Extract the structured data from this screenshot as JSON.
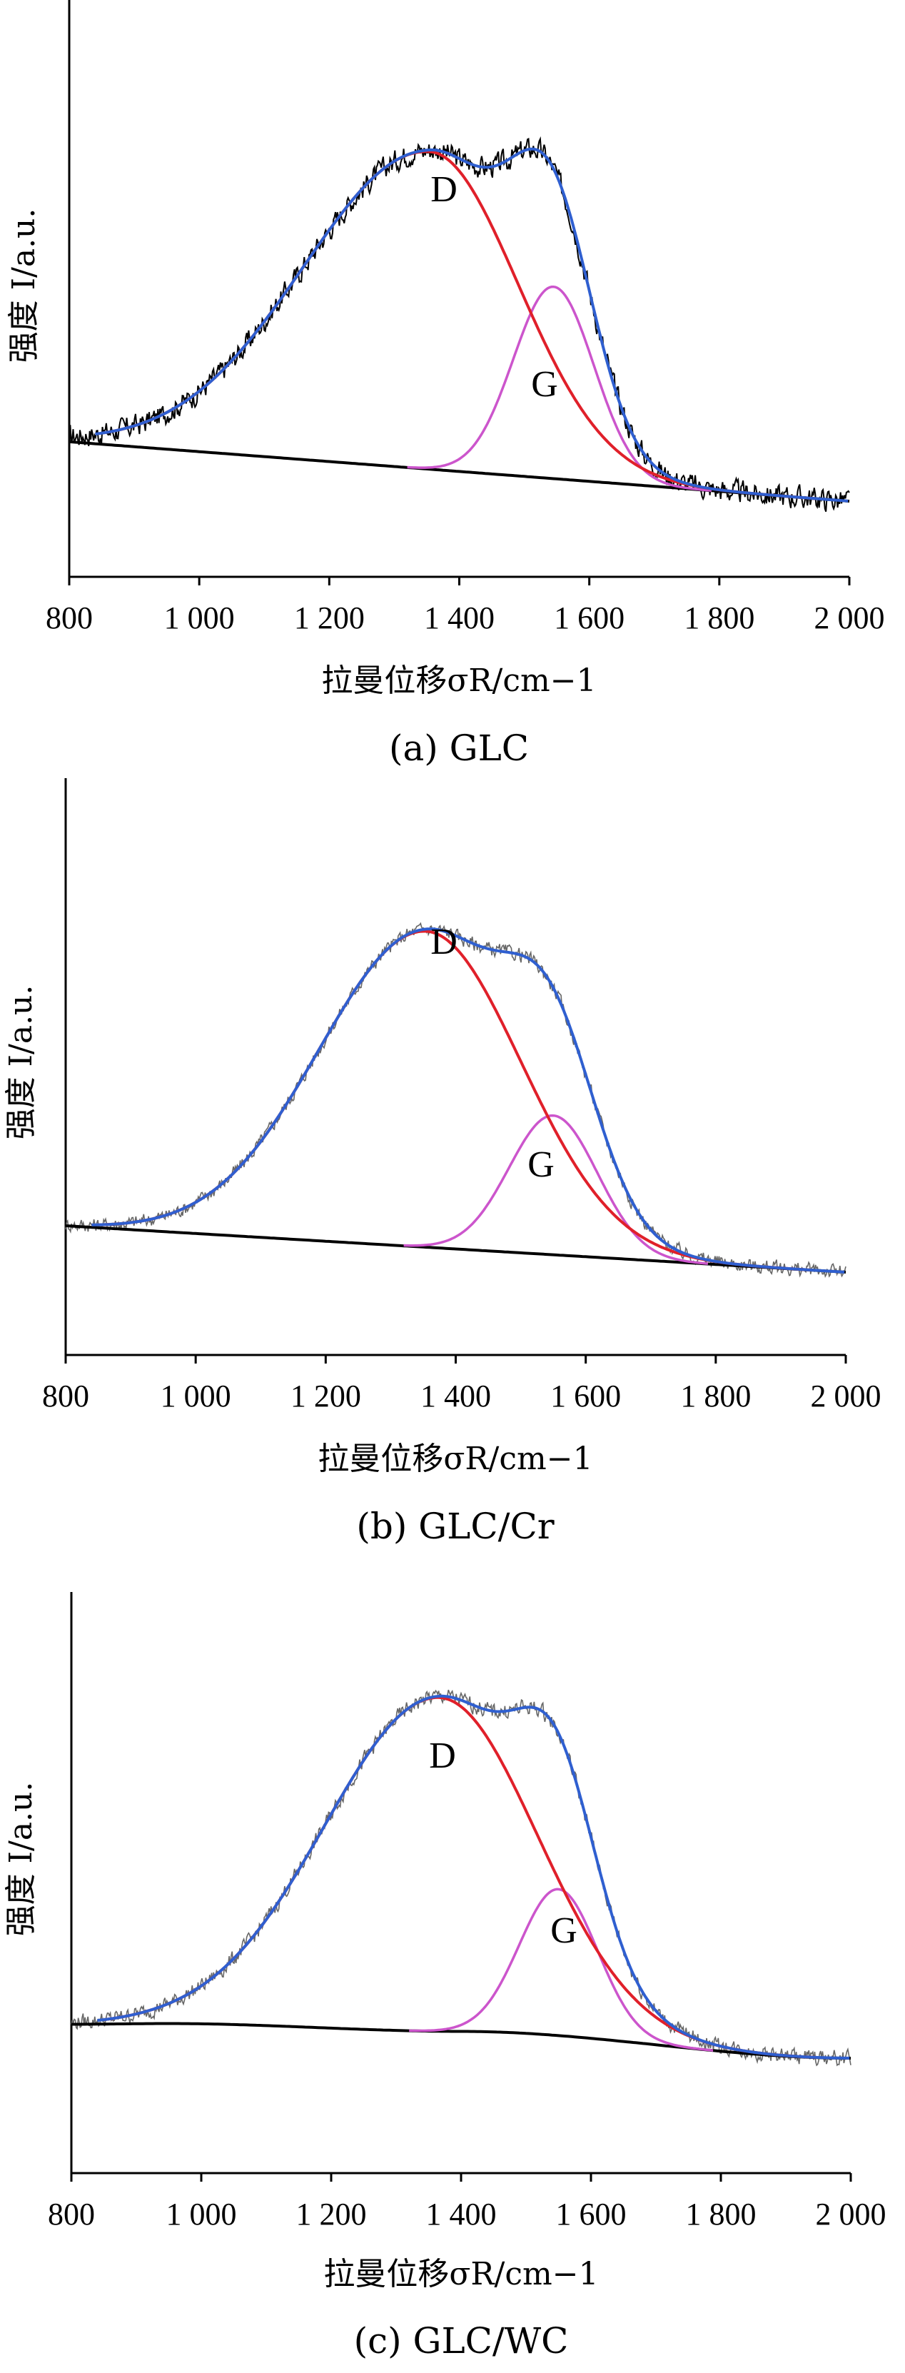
{
  "chart_data": [
    {
      "type": "line",
      "caption": "(a) GLC",
      "xlabel": "拉曼位移σR/cm−1",
      "ylabel": "强度 I/a.u.",
      "xlim": [
        800,
        2000
      ],
      "x_ticks": [
        "800",
        "1 000",
        "1 200",
        "1 400",
        "1 600",
        "1 800",
        "2 000"
      ],
      "peak_labels": [
        "D",
        "G"
      ],
      "series": [
        {
          "role": "baseline",
          "color": "#000000",
          "x": [
            800,
            2000
          ],
          "y": [
            0.13,
            0.0
          ]
        },
        {
          "role": "d-band",
          "color": "#e0202a",
          "center": 1355,
          "height": 0.695,
          "sigma_left": 195,
          "sigma_right": 135
        },
        {
          "role": "g-band",
          "color": "#cc55cc",
          "center": 1545,
          "height": 0.42,
          "sigma": 62
        },
        {
          "role": "fit",
          "color": "#2f5fd0"
        },
        {
          "role": "measured",
          "color": "#000000",
          "noise": 0.022
        }
      ]
    },
    {
      "type": "line",
      "caption": "(b) GLC/Cr",
      "xlabel": "拉曼位移σR/cm−1",
      "ylabel": "强度 I/a.u.",
      "xlim": [
        800,
        2000
      ],
      "x_ticks": [
        "800",
        "1 000",
        "1 200",
        "1 400",
        "1 600",
        "1 800",
        "2 000"
      ],
      "peak_labels": [
        "D",
        "G"
      ],
      "series": [
        {
          "role": "baseline",
          "color": "#000000",
          "x": [
            800,
            2000
          ],
          "y": [
            0.13,
            0.0
          ]
        },
        {
          "role": "d-band",
          "color": "#e0202a",
          "center": 1355,
          "height": 0.885,
          "sigma_left": 165,
          "sigma_right": 145
        },
        {
          "role": "g-band",
          "color": "#cc55cc",
          "center": 1550,
          "height": 0.39,
          "sigma": 68
        },
        {
          "role": "fit",
          "color": "#2f5fd0"
        },
        {
          "role": "measured",
          "color": "#666666",
          "noise": 0.018
        }
      ]
    },
    {
      "type": "line",
      "caption": "(c) GLC/WC",
      "xlabel": "拉曼位移σR/cm−1",
      "ylabel": "强度 I/a.u.",
      "xlim": [
        800,
        2000
      ],
      "x_ticks": [
        "800",
        "1 000",
        "1 200",
        "1 400",
        "1 600",
        "1 800",
        "2 000"
      ],
      "peak_labels": [
        "D",
        "G"
      ],
      "series": [
        {
          "role": "baseline",
          "color": "#000000",
          "shape": "arc",
          "x": [
            800,
            950,
            1400,
            2000
          ],
          "y": [
            0.095,
            0.097,
            0.075,
            0.0
          ]
        },
        {
          "role": "d-band",
          "color": "#e0202a",
          "center": 1365,
          "height": 0.935,
          "sigma_left": 175,
          "sigma_right": 150
        },
        {
          "role": "g-band",
          "color": "#cc55cc",
          "center": 1550,
          "height": 0.41,
          "sigma": 60
        },
        {
          "role": "fit",
          "color": "#2f5fd0"
        },
        {
          "role": "measured",
          "color": "#666666",
          "noise": 0.02
        }
      ]
    }
  ]
}
